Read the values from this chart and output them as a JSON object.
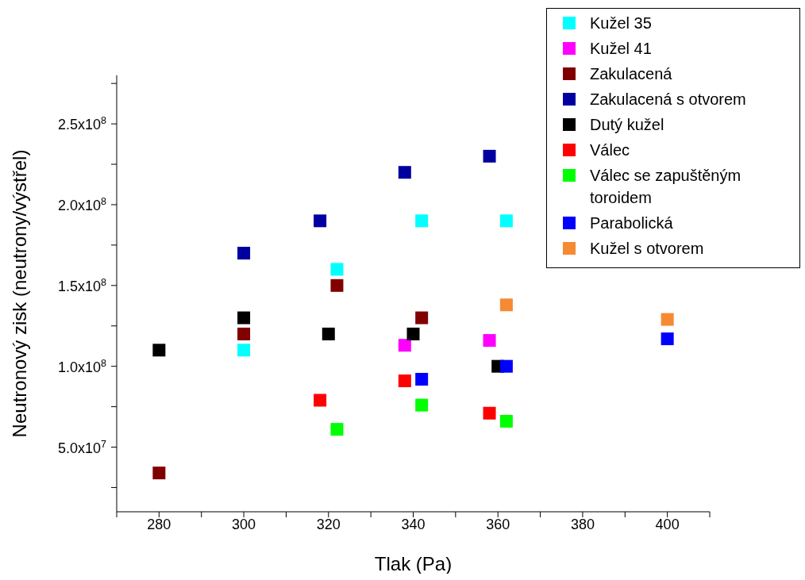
{
  "chart_data": {
    "type": "scatter",
    "xlabel": "Tlak (Pa)",
    "ylabel": "Neutronový zisk (neutrony/výstřel)",
    "xlim": [
      270,
      410
    ],
    "ylim": [
      10000000,
      280000000
    ],
    "xticks": [
      {
        "value": 270,
        "label": null
      },
      280,
      {
        "value": 290,
        "label": null
      },
      300,
      {
        "value": 310,
        "label": null
      },
      320,
      {
        "value": 330,
        "label": null
      },
      340,
      {
        "value": 350,
        "label": null
      },
      360,
      {
        "value": 370,
        "label": null
      },
      380,
      {
        "value": 390,
        "label": null
      },
      400,
      {
        "value": 410,
        "label": null
      }
    ],
    "yticks": [
      {
        "value": 25000000,
        "label": null
      },
      {
        "value": 50000000,
        "label": "5.0x10$^{7}$"
      },
      {
        "value": 75000000,
        "label": null
      },
      {
        "value": 100000000,
        "label": "1.0x10$^{8}$"
      },
      {
        "value": 125000000,
        "label": null
      },
      {
        "value": 150000000,
        "label": "1.5x10$^{8}$"
      },
      {
        "value": 175000000,
        "label": null
      },
      {
        "value": 200000000,
        "label": "2.0x10$^{8}$"
      },
      {
        "value": 225000000,
        "label": null
      },
      {
        "value": 250000000,
        "label": "2.5x10$^{8}$"
      },
      {
        "value": 275000000,
        "label": null
      }
    ],
    "grid": false,
    "legend": "top right",
    "marker": "square",
    "series": [
      {
        "name": "Kužel 35",
        "color": "#00ffff",
        "x": [
          300,
          322,
          342,
          362
        ],
        "values": [
          110000000,
          160000000,
          190000000,
          190000000
        ]
      },
      {
        "name": "Kužel 41",
        "color": "#ff00ff",
        "x": [
          338,
          358
        ],
        "values": [
          113000000,
          116000000
        ]
      },
      {
        "name": "Zakulacená",
        "color": "#800000",
        "x": [
          280,
          300,
          322,
          342
        ],
        "values": [
          34000000,
          120000000,
          150000000,
          130000000
        ]
      },
      {
        "name": "Zakulacená s otvorem",
        "color": "#0000a0",
        "x": [
          300,
          318,
          338,
          358
        ],
        "values": [
          170000000,
          190000000,
          220000000,
          230000000
        ]
      },
      {
        "name": "Dutý kužel",
        "color": "#000000",
        "x": [
          280,
          300,
          320,
          340,
          360
        ],
        "values": [
          110000000,
          130000000,
          120000000,
          120000000,
          100000000
        ]
      },
      {
        "name": "Válec",
        "color": "#ff0000",
        "x": [
          318,
          338,
          358
        ],
        "values": [
          79000000,
          91000000,
          71000000
        ]
      },
      {
        "name": "Válec se zapuštěným toroidem",
        "color": "#00ff00",
        "x": [
          322,
          342,
          362
        ],
        "values": [
          61000000,
          76000000,
          66000000
        ]
      },
      {
        "name": "Parabolická",
        "color": "#0000ff",
        "x": [
          342,
          362,
          400
        ],
        "values": [
          92000000,
          100000000,
          117000000
        ]
      },
      {
        "name": "Kužel s otvorem",
        "color": "#f58a32",
        "x": [
          362,
          400
        ],
        "values": [
          138000000,
          129000000
        ]
      }
    ]
  }
}
